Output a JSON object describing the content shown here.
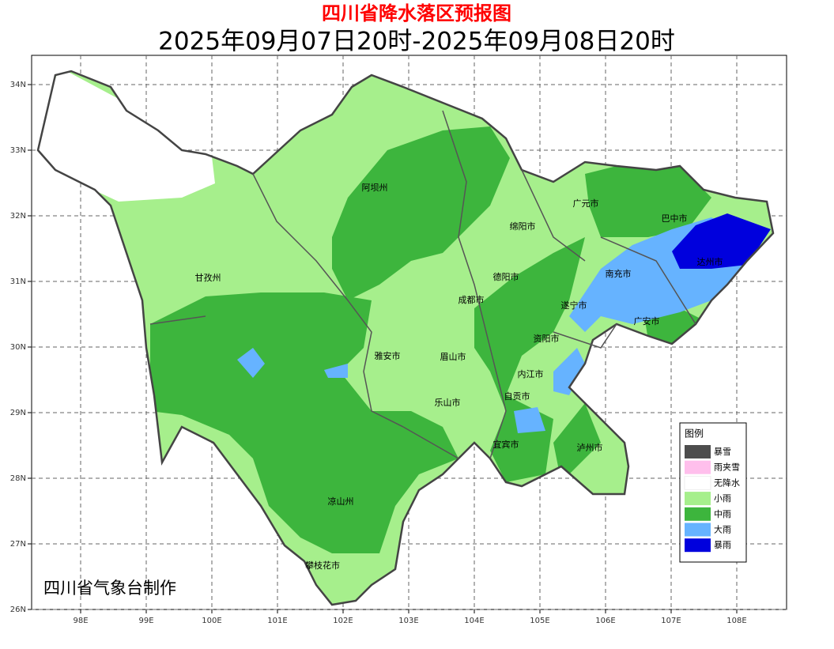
{
  "header": {
    "title": "四川省降水落区预报图",
    "subtitle": "2025年09月07日20时-2025年09月08日20时"
  },
  "map": {
    "lon_labels": [
      "98E",
      "99E",
      "100E",
      "101E",
      "102E",
      "103E",
      "104E",
      "105E",
      "106E",
      "107E",
      "108E"
    ],
    "lat_labels": [
      "34N",
      "33N",
      "32N",
      "31N",
      "30N",
      "29N",
      "28N",
      "27N",
      "26N"
    ],
    "regions": [
      "阿坝州",
      "广元市",
      "巴中市",
      "绵阳市",
      "达州市",
      "甘孜州",
      "德阳市",
      "南充市",
      "成都市",
      "遂宁市",
      "广安市",
      "资阳市",
      "雅安市",
      "眉山市",
      "内江市",
      "自贡市",
      "乐山市",
      "宜宾市",
      "泸州市",
      "凉山州",
      "攀枝花市"
    ]
  },
  "legend": {
    "title": "图例",
    "items": [
      {
        "label": "暴雪",
        "color": "#4d4d4d"
      },
      {
        "label": "雨夹雪",
        "color": "#ffbfec"
      },
      {
        "label": "无降水",
        "color": "#ffffff"
      },
      {
        "label": "小雨",
        "color": "#a6ef8c"
      },
      {
        "label": "中雨",
        "color": "#3db53d"
      },
      {
        "label": "大雨",
        "color": "#66b3ff"
      },
      {
        "label": "暴雨",
        "color": "#0000dd"
      }
    ]
  },
  "footer": "四川省气象台制作"
}
